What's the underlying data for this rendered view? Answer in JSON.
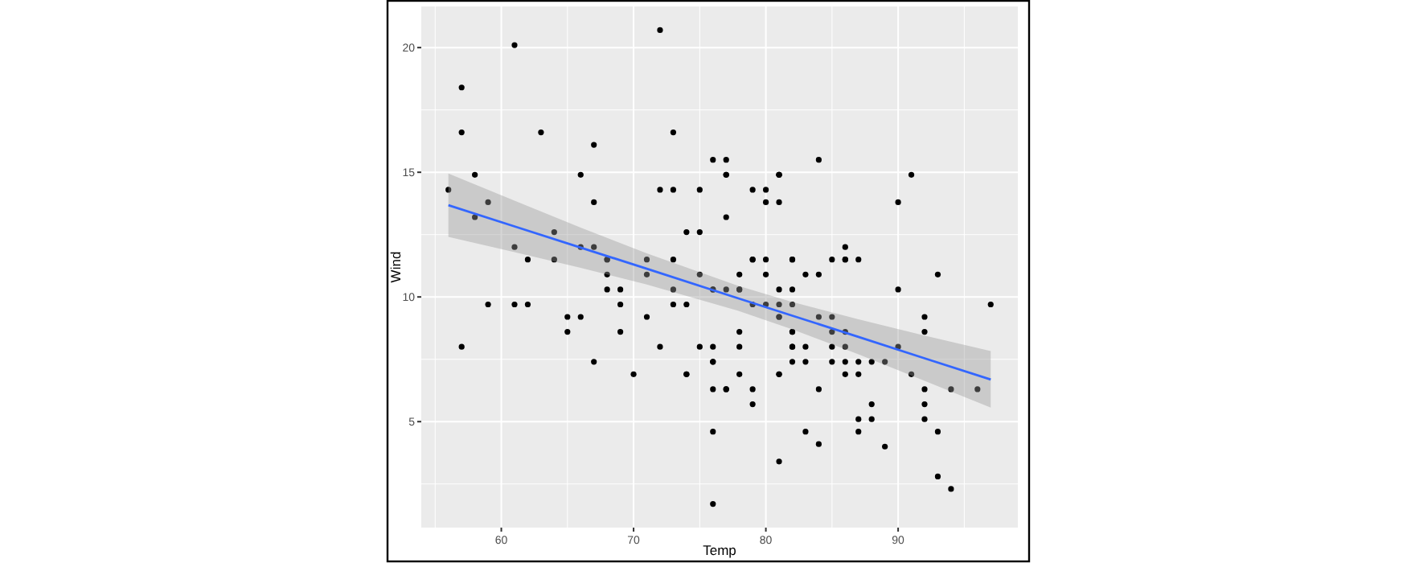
{
  "chart_data": {
    "type": "scatter",
    "xlabel": "Temp",
    "ylabel": "Wind",
    "xlim": [
      53.95,
      99.05
    ],
    "ylim": [
      0.75,
      21.65
    ],
    "xticks": [
      60,
      70,
      80,
      90
    ],
    "yticks": [
      5,
      10,
      15,
      20
    ],
    "grid": true,
    "series": [
      {
        "color": "#000000",
        "marker": "circle",
        "x": [
          67,
          72,
          74,
          62,
          56,
          66,
          65,
          59,
          61,
          69,
          74,
          69,
          66,
          68,
          58,
          64,
          66,
          57,
          68,
          62,
          59,
          73,
          61,
          61,
          57,
          58,
          57,
          67,
          81,
          79,
          76,
          78,
          74,
          67,
          84,
          85,
          79,
          82,
          87,
          90,
          87,
          93,
          92,
          82,
          80,
          79,
          77,
          72,
          65,
          73,
          76,
          77,
          76,
          76,
          76,
          75,
          78,
          73,
          80,
          77,
          83,
          84,
          85,
          81,
          84,
          83,
          83,
          88,
          92,
          92,
          89,
          82,
          73,
          81,
          91,
          80,
          81,
          82,
          84,
          87,
          85,
          74,
          81,
          82,
          86,
          85,
          82,
          86,
          88,
          86,
          83,
          81,
          81,
          81,
          82,
          86,
          85,
          87,
          89,
          90,
          90,
          92,
          86,
          86,
          82,
          80,
          79,
          77,
          79,
          76,
          78,
          78,
          77,
          72,
          75,
          79,
          81,
          86,
          88,
          97,
          94,
          96,
          94,
          91,
          92,
          93,
          93,
          87,
          84,
          80,
          78,
          75,
          73,
          81,
          76,
          77,
          71,
          71,
          78,
          67,
          76,
          68,
          82,
          64,
          71,
          81,
          69,
          63,
          70,
          77,
          75,
          76,
          68
        ],
        "values": [
          7.4,
          8.0,
          12.6,
          11.5,
          14.3,
          14.9,
          8.6,
          13.8,
          20.1,
          8.6,
          6.9,
          9.7,
          9.2,
          10.9,
          13.2,
          11.5,
          12.0,
          18.4,
          11.5,
          9.7,
          9.7,
          16.6,
          9.7,
          12.0,
          16.6,
          14.9,
          8.0,
          12.0,
          14.9,
          5.7,
          7.4,
          8.6,
          9.7,
          16.1,
          9.2,
          8.6,
          14.3,
          9.7,
          6.9,
          13.8,
          11.5,
          10.9,
          9.2,
          8.0,
          13.8,
          11.5,
          14.9,
          20.7,
          9.2,
          11.5,
          10.3,
          6.3,
          1.7,
          4.6,
          6.3,
          8.0,
          8.0,
          10.3,
          11.5,
          14.9,
          8.0,
          4.1,
          9.2,
          9.2,
          10.9,
          4.6,
          10.9,
          5.1,
          6.3,
          5.7,
          7.4,
          8.6,
          14.3,
          14.9,
          14.9,
          14.3,
          6.9,
          10.3,
          6.3,
          5.1,
          11.5,
          6.9,
          9.7,
          11.5,
          8.6,
          8.0,
          8.6,
          12.0,
          7.4,
          7.4,
          7.4,
          9.2,
          6.9,
          13.8,
          7.4,
          6.9,
          7.4,
          4.6,
          4.0,
          10.3,
          8.0,
          8.6,
          11.5,
          11.5,
          11.5,
          9.7,
          11.5,
          10.3,
          6.3,
          7.4,
          10.9,
          10.3,
          15.5,
          14.3,
          12.6,
          9.7,
          3.4,
          8.0,
          5.7,
          9.7,
          2.3,
          6.3,
          6.3,
          6.9,
          5.1,
          2.8,
          4.6,
          7.4,
          15.5,
          10.9,
          10.3,
          10.9,
          9.7,
          14.9,
          15.5,
          6.3,
          10.9,
          11.5,
          6.9,
          13.8,
          10.3,
          10.3,
          8.0,
          12.6,
          9.2,
          10.3,
          10.3,
          16.6,
          6.9,
          13.2,
          14.3,
          8.0,
          11.5
        ]
      },
      {
        "type": "line",
        "marker": "none",
        "color": "#3366ff",
        "x": [
          56,
          61,
          66,
          71,
          77.88,
          82,
          87,
          92,
          97
        ],
        "values": [
          13.68,
          12.83,
          11.98,
          11.13,
          9.95,
          9.25,
          8.4,
          7.54,
          6.69
        ],
        "lower": [
          12.41,
          11.8,
          11.17,
          10.5,
          9.45,
          8.7,
          7.7,
          6.64,
          5.56
        ],
        "upper": [
          14.95,
          13.86,
          12.78,
          11.75,
          10.45,
          9.8,
          9.1,
          8.45,
          7.83
        ]
      }
    ]
  }
}
